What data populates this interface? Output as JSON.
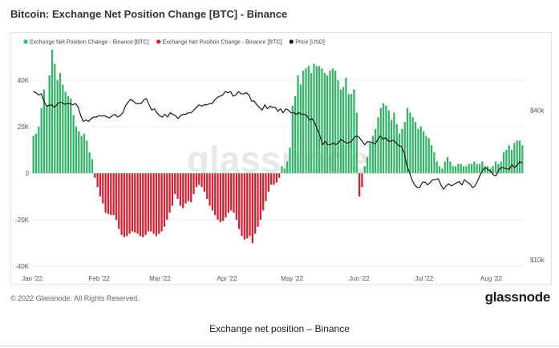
{
  "header": {
    "title": "Bitcoin: Exchange Net Position Change [BTC] - Binance"
  },
  "footer": {
    "copyright": "© 2022 Glassnode. All Rights Reserved.",
    "brand": "glassnode"
  },
  "caption": "Exchange net position – Binance",
  "watermark": "glassnode",
  "colors": {
    "positive": "#33b567",
    "negative": "#d6202f",
    "price": "#1a1a1a",
    "grid": "#ececec",
    "watermark": "#d9d9d9"
  },
  "chart_data": {
    "type": "bar",
    "title": "Bitcoin: Exchange Net Position Change [BTC] - Binance",
    "x_range": [
      "2022-01-01",
      "2022-08-16"
    ],
    "x_tick_labels": [
      "Jan '22",
      "Feb '22",
      "Mar '22",
      "Apr '22",
      "May '22",
      "Jun '22",
      "Jul '22",
      "Aug '22"
    ],
    "y_left_ticks": [
      "-40K",
      "-20K",
      "0",
      "20K",
      "40K"
    ],
    "y_left_tick_values": [
      -40000,
      -20000,
      0,
      20000,
      40000
    ],
    "y_left_range": [
      -42000,
      53000
    ],
    "y_right_ticks": [
      "$10k",
      "$40k"
    ],
    "y_right_tick_values": [
      10000,
      40000
    ],
    "y_right_scale": "log",
    "y_right_range": [
      9000,
      70000
    ],
    "legend": {
      "placement": "top-left",
      "items": [
        {
          "label": "Exchange Net Position Change - Binance [BTC]",
          "color": "#33b567",
          "marker": "circle"
        },
        {
          "label": "Exchange Net Position Change - Binance [BTC]",
          "color": "#d6202f",
          "marker": "circle"
        },
        {
          "label": "Price [USD]",
          "color": "#1a1a1a",
          "marker": "circle"
        }
      ]
    },
    "grid": true,
    "series": [
      {
        "name": "Exchange Net Position Change - Binance [BTC]",
        "axis": "left",
        "style": "bars",
        "values": [
          16000,
          17000,
          20000,
          28000,
          36000,
          29000,
          42000,
          53000,
          47000,
          40000,
          43000,
          38000,
          35000,
          33000,
          32000,
          25000,
          20000,
          18000,
          16000,
          17000,
          14000,
          9000,
          6000,
          -2000,
          -6000,
          -10000,
          -13000,
          -17000,
          -17500,
          -18000,
          -18000,
          -20000,
          -24000,
          -26500,
          -27500,
          -27000,
          -26000,
          -25000,
          -25500,
          -26000,
          -27000,
          -27500,
          -26500,
          -25000,
          -25000,
          -26000,
          -27000,
          -26000,
          -25000,
          -23000,
          -20000,
          -17000,
          -14000,
          -9000,
          -11000,
          -14000,
          -15000,
          -13000,
          -12000,
          -12500,
          -9000,
          -6000,
          -5000,
          -6000,
          -8000,
          -11000,
          -14000,
          -16000,
          -18000,
          -20000,
          -21000,
          -20500,
          -19000,
          -17000,
          -16000,
          -17000,
          -20000,
          -24000,
          -27000,
          -28500,
          -28000,
          -27000,
          -30000,
          -26000,
          -23000,
          -20000,
          -16000,
          -12000,
          -8000,
          -5000,
          -5000,
          -4000,
          -2000,
          3000,
          2000,
          5000,
          11000,
          29000,
          33000,
          42000,
          38000,
          44000,
          45000,
          46000,
          43000,
          47000,
          46000,
          46000,
          45000,
          43000,
          42000,
          44000,
          45000,
          44000,
          40000,
          36000,
          37000,
          41000,
          34000,
          34000,
          36000,
          26000,
          -10000,
          -6000,
          3000,
          7000,
          13000,
          16000,
          19000,
          24000,
          28000,
          30000,
          29000,
          27000,
          23000,
          26000,
          21000,
          17000,
          19000,
          22000,
          28000,
          26000,
          24000,
          22000,
          19000,
          20000,
          18000,
          16000,
          15000,
          12000,
          9000,
          5000,
          3000,
          2000,
          5000,
          7000,
          5000,
          3000,
          3000,
          4000,
          4000,
          3000,
          3000,
          4000,
          4000,
          5000,
          4000,
          4000,
          5000,
          3000,
          3000,
          2000,
          3000,
          5000,
          4000,
          5000,
          9000,
          10000,
          12000,
          10000,
          13000,
          14000,
          14000,
          12000
        ]
      },
      {
        "name": "Price [USD]",
        "axis": "right",
        "style": "line",
        "values": [
          47500,
          47000,
          46000,
          46500,
          43500,
          41500,
          41800,
          42000,
          41000,
          42200,
          43000,
          42800,
          42200,
          42500,
          42500,
          42000,
          42500,
          41200,
          38000,
          36000,
          36500,
          36000,
          37000,
          37500,
          37500,
          38000,
          37800,
          38000,
          37500,
          37200,
          38000,
          38500,
          37500,
          38000,
          39000,
          41500,
          43000,
          44200,
          43500,
          42500,
          42500,
          42500,
          44000,
          44500,
          42000,
          40000,
          40500,
          39000,
          38000,
          37500,
          38500,
          37500,
          39000,
          38500,
          38000,
          37000,
          38000,
          38500,
          38500,
          39000,
          39000,
          40000,
          41000,
          42000,
          41500,
          42000,
          42000,
          42500,
          42500,
          44000,
          45000,
          45500,
          46000,
          47500,
          47000,
          47500,
          45500,
          46000,
          47500,
          46500,
          46500,
          47000,
          46000,
          43500,
          43500,
          42000,
          41000,
          40000,
          42000,
          40500,
          41500,
          41000,
          41000,
          39500,
          40500,
          39000,
          40500,
          40000,
          39000,
          39000,
          38500,
          39000,
          38500,
          38500,
          38000,
          36500,
          37000,
          35500,
          33500,
          31500,
          29000,
          30000,
          29000,
          29000,
          29500,
          29000,
          29500,
          30500,
          30000,
          29500,
          29500,
          30000,
          31000,
          31500,
          31000,
          30000,
          29000,
          29800,
          29800,
          29600,
          29200,
          30500,
          31500,
          30500,
          31000,
          30000,
          30000,
          30200,
          29500,
          28800,
          28500,
          27000,
          24000,
          22500,
          21000,
          20000,
          19500,
          19600,
          20500,
          20500,
          20000,
          20500,
          21000,
          21000,
          21200,
          20000,
          19200,
          19800,
          20200,
          19800,
          20100,
          20400,
          20600,
          20000,
          21000,
          20500,
          20200,
          19500,
          19800,
          20800,
          22000,
          23000,
          23500,
          23000,
          22700,
          21900,
          21800,
          23000,
          23500,
          23400,
          23200,
          23100,
          24100,
          23500,
          24000,
          24800,
          24500
        ]
      }
    ]
  }
}
